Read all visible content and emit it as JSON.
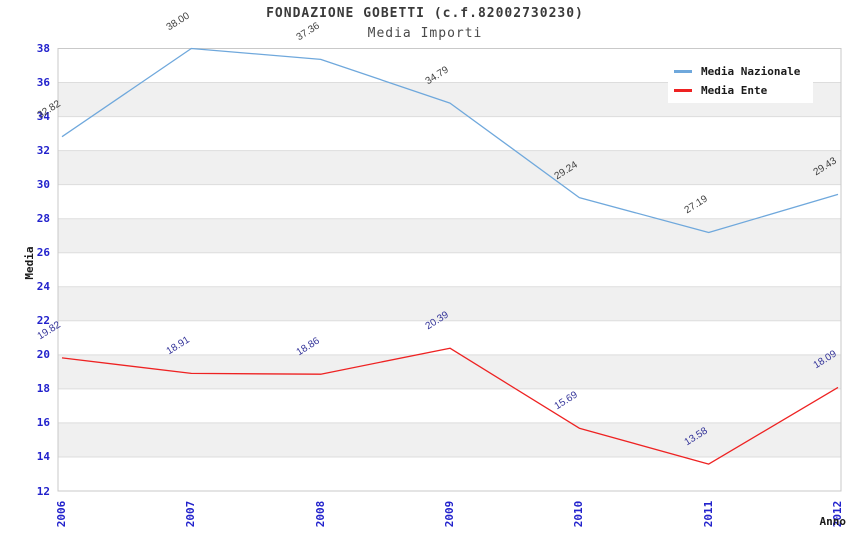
{
  "chart_data": {
    "type": "line",
    "title": "FONDAZIONE GOBETTI (c.f.82002730230)",
    "subtitle": "Media Importi",
    "xlabel": "Anno",
    "ylabel": "Media",
    "x": [
      2006,
      2007,
      2008,
      2009,
      2010,
      2011,
      2012
    ],
    "series": [
      {
        "name": "Media Nazionale",
        "color": "#6fa8dc",
        "label_color": "#3f3f3f",
        "values": [
          32.82,
          38.0,
          37.36,
          34.79,
          29.24,
          27.19,
          29.43
        ],
        "labels": [
          "32.82",
          "38.00",
          "37.36",
          "34.79",
          "29.24",
          "27.19",
          "29.43"
        ]
      },
      {
        "name": "Media Ente",
        "color": "#ee2222",
        "label_color": "#333399",
        "values": [
          19.82,
          18.91,
          18.86,
          20.39,
          15.69,
          13.58,
          18.09
        ],
        "labels": [
          "19.82",
          "18.91",
          "18.86",
          "20.39",
          "15.69",
          "13.58",
          "18.09"
        ]
      }
    ],
    "ylim": [
      12,
      38
    ],
    "ytick_step": 2,
    "yticks": [
      12,
      14,
      16,
      18,
      20,
      22,
      24,
      26,
      28,
      30,
      32,
      34,
      36,
      38
    ],
    "legend_position": "top-right",
    "grid": "horizontal-bands",
    "colors": {
      "tick_label": "#2222cc",
      "band_gray": "#f0f0f0",
      "grid_line": "#dddddd",
      "plot_border": "#c9c9c9",
      "title_text": "#3a3a3a"
    }
  }
}
